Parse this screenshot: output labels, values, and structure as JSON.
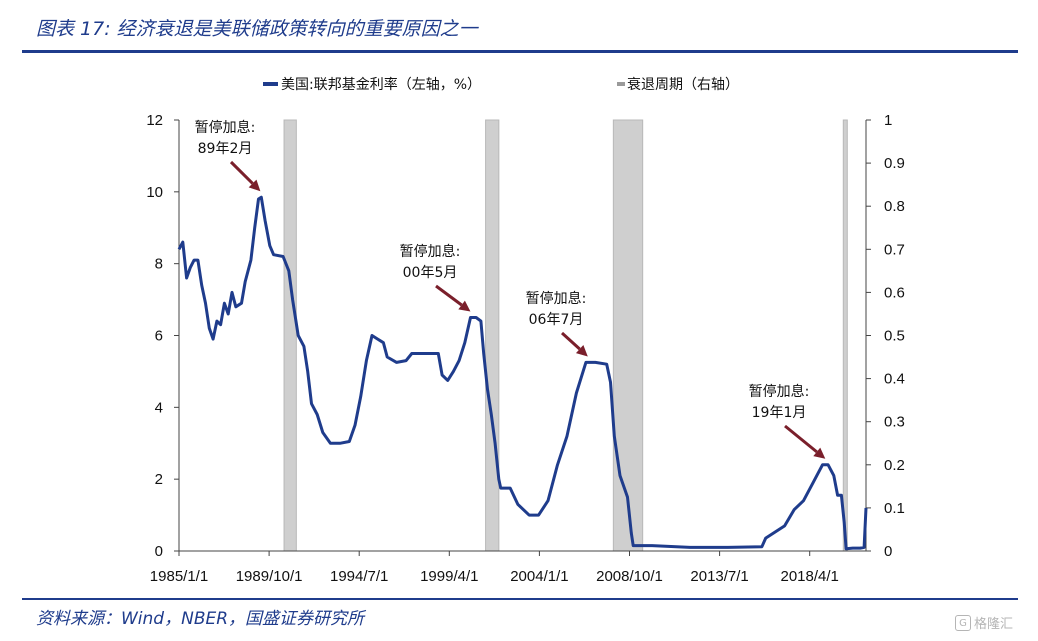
{
  "header": {
    "title": "图表 17: 经济衰退是美联储政策转向的重要原因之一"
  },
  "source": "资料来源：Wind，NBER，国盛证券研究所",
  "watermark": "格隆汇",
  "colors": {
    "fed_rate": "#1f3c8c",
    "recession": "#cfcfcf",
    "header": "#1f3c8c",
    "annotation_arrow": "#7a1f2b"
  },
  "chart_data": {
    "type": "line",
    "legend": [
      {
        "name": "美国:联邦基金利率（左轴，%）",
        "style": "line",
        "color": "#1f3c8c"
      },
      {
        "name": "衰退周期（右轴）",
        "style": "bar",
        "color": "#cfcfcf"
      }
    ],
    "legend_position": "top-center",
    "grid": false,
    "x_ticks": [
      "1985/1/1",
      "1989/10/1",
      "1994/7/1",
      "1999/4/1",
      "2004/1/1",
      "2008/10/1",
      "2013/7/1",
      "2018/4/1"
    ],
    "x_range": [
      1985.0,
      2021.3
    ],
    "y_left": {
      "ticks": [
        0,
        2,
        4,
        6,
        8,
        10,
        12
      ],
      "range": [
        0,
        12
      ]
    },
    "y_right": {
      "ticks": [
        0,
        0.1,
        0.2,
        0.3,
        0.4,
        0.5,
        0.6,
        0.7,
        0.8,
        0.9,
        1
      ],
      "range": [
        0,
        1
      ]
    },
    "recessions": [
      {
        "start": 1990.55,
        "end": 1991.2,
        "value": 1
      },
      {
        "start": 2001.2,
        "end": 2001.9,
        "value": 1
      },
      {
        "start": 2007.95,
        "end": 2009.5,
        "value": 1
      },
      {
        "start": 2020.1,
        "end": 2020.3,
        "value": 1
      }
    ],
    "series": [
      {
        "name": "美国:联邦基金利率（左轴，%）",
        "axis": "left",
        "points": [
          [
            1985.0,
            8.4
          ],
          [
            1985.2,
            8.6
          ],
          [
            1985.4,
            7.6
          ],
          [
            1985.6,
            7.9
          ],
          [
            1985.8,
            8.1
          ],
          [
            1986.0,
            8.1
          ],
          [
            1986.2,
            7.4
          ],
          [
            1986.4,
            6.9
          ],
          [
            1986.6,
            6.2
          ],
          [
            1986.8,
            5.9
          ],
          [
            1987.0,
            6.4
          ],
          [
            1987.2,
            6.3
          ],
          [
            1987.4,
            6.9
          ],
          [
            1987.6,
            6.6
          ],
          [
            1987.8,
            7.2
          ],
          [
            1988.0,
            6.8
          ],
          [
            1988.3,
            6.9
          ],
          [
            1988.5,
            7.5
          ],
          [
            1988.8,
            8.1
          ],
          [
            1989.0,
            9.0
          ],
          [
            1989.2,
            9.8
          ],
          [
            1989.35,
            9.85
          ],
          [
            1989.55,
            9.2
          ],
          [
            1989.8,
            8.5
          ],
          [
            1990.0,
            8.25
          ],
          [
            1990.5,
            8.2
          ],
          [
            1990.8,
            7.8
          ],
          [
            1991.0,
            7.0
          ],
          [
            1991.3,
            6.0
          ],
          [
            1991.6,
            5.7
          ],
          [
            1991.8,
            5.0
          ],
          [
            1992.0,
            4.1
          ],
          [
            1992.3,
            3.8
          ],
          [
            1992.6,
            3.3
          ],
          [
            1993.0,
            3.0
          ],
          [
            1993.5,
            3.0
          ],
          [
            1994.0,
            3.05
          ],
          [
            1994.3,
            3.5
          ],
          [
            1994.6,
            4.3
          ],
          [
            1994.9,
            5.3
          ],
          [
            1995.2,
            6.0
          ],
          [
            1995.5,
            5.9
          ],
          [
            1995.8,
            5.8
          ],
          [
            1996.0,
            5.4
          ],
          [
            1996.5,
            5.25
          ],
          [
            1997.0,
            5.3
          ],
          [
            1997.3,
            5.5
          ],
          [
            1997.8,
            5.5
          ],
          [
            1998.3,
            5.5
          ],
          [
            1998.7,
            5.5
          ],
          [
            1998.9,
            4.9
          ],
          [
            1999.2,
            4.75
          ],
          [
            1999.5,
            5.0
          ],
          [
            1999.8,
            5.3
          ],
          [
            2000.1,
            5.8
          ],
          [
            2000.4,
            6.5
          ],
          [
            2000.7,
            6.5
          ],
          [
            2000.95,
            6.4
          ],
          [
            2001.1,
            5.5
          ],
          [
            2001.3,
            4.5
          ],
          [
            2001.5,
            3.8
          ],
          [
            2001.7,
            3.0
          ],
          [
            2001.9,
            2.0
          ],
          [
            2002.0,
            1.75
          ],
          [
            2002.5,
            1.75
          ],
          [
            2002.9,
            1.3
          ],
          [
            2003.5,
            1.0
          ],
          [
            2004.0,
            1.0
          ],
          [
            2004.5,
            1.4
          ],
          [
            2005.0,
            2.4
          ],
          [
            2005.5,
            3.2
          ],
          [
            2006.0,
            4.4
          ],
          [
            2006.5,
            5.25
          ],
          [
            2007.0,
            5.25
          ],
          [
            2007.6,
            5.2
          ],
          [
            2007.8,
            4.7
          ],
          [
            2008.0,
            3.2
          ],
          [
            2008.3,
            2.1
          ],
          [
            2008.7,
            1.5
          ],
          [
            2008.9,
            0.5
          ],
          [
            2009.0,
            0.15
          ],
          [
            2010.0,
            0.15
          ],
          [
            2012.0,
            0.1
          ],
          [
            2014.0,
            0.1
          ],
          [
            2015.8,
            0.12
          ],
          [
            2016.0,
            0.36
          ],
          [
            2017.0,
            0.7
          ],
          [
            2017.5,
            1.15
          ],
          [
            2018.0,
            1.4
          ],
          [
            2018.5,
            1.9
          ],
          [
            2019.0,
            2.4
          ],
          [
            2019.3,
            2.4
          ],
          [
            2019.6,
            2.1
          ],
          [
            2019.8,
            1.55
          ],
          [
            2020.0,
            1.55
          ],
          [
            2020.15,
            0.8
          ],
          [
            2020.25,
            0.06
          ],
          [
            2020.6,
            0.08
          ],
          [
            2021.0,
            0.08
          ],
          [
            2021.2,
            0.1
          ],
          [
            2021.3,
            1.2
          ]
        ]
      }
    ],
    "annotations": [
      {
        "line1": "暂停加息:",
        "line2": "89年2月",
        "x": 1989.3,
        "y": 9.85
      },
      {
        "line1": "暂停加息:",
        "line2": "00年5月",
        "x": 2000.4,
        "y": 6.5
      },
      {
        "line1": "暂停加息:",
        "line2": "06年7月",
        "x": 2006.6,
        "y": 5.25
      },
      {
        "line1": "暂停加息:",
        "line2": "19年1月",
        "x": 2019.15,
        "y": 2.4
      }
    ]
  }
}
